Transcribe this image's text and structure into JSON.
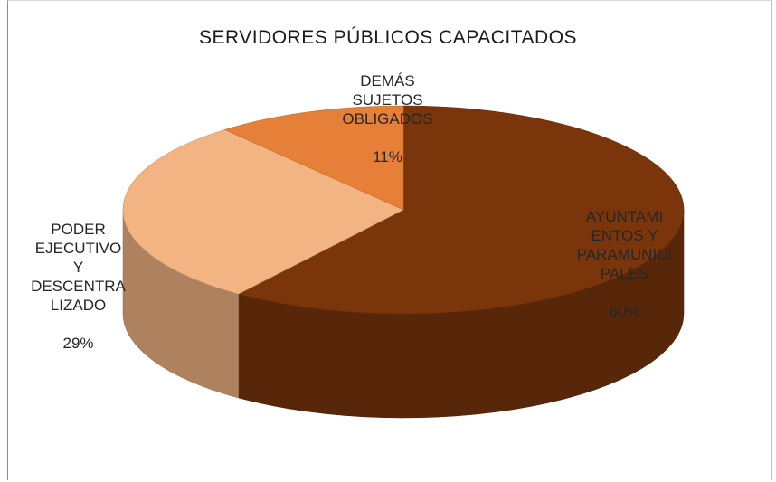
{
  "chart_data": {
    "type": "pie",
    "title": "SERVIDORES PÚBLICOS CAPACITADOS",
    "slices": [
      {
        "label": "AYUNTAMI\nENTOS Y\nPARAMUNICI\nPALES",
        "value": 60,
        "percent_label": "60%",
        "color": "#7a350b"
      },
      {
        "label": "PODER\nEJECUTIVO\nY\nDESCENTRA\nLIZADO",
        "value": 29,
        "percent_label": "29%",
        "color": "#f2b483"
      },
      {
        "label": "DEMÁS\nSUJETOS\nOBLIGADOS",
        "value": 11,
        "percent_label": "11%",
        "color": "#e67f37"
      }
    ],
    "legend": "none",
    "style": "3d-pie"
  }
}
